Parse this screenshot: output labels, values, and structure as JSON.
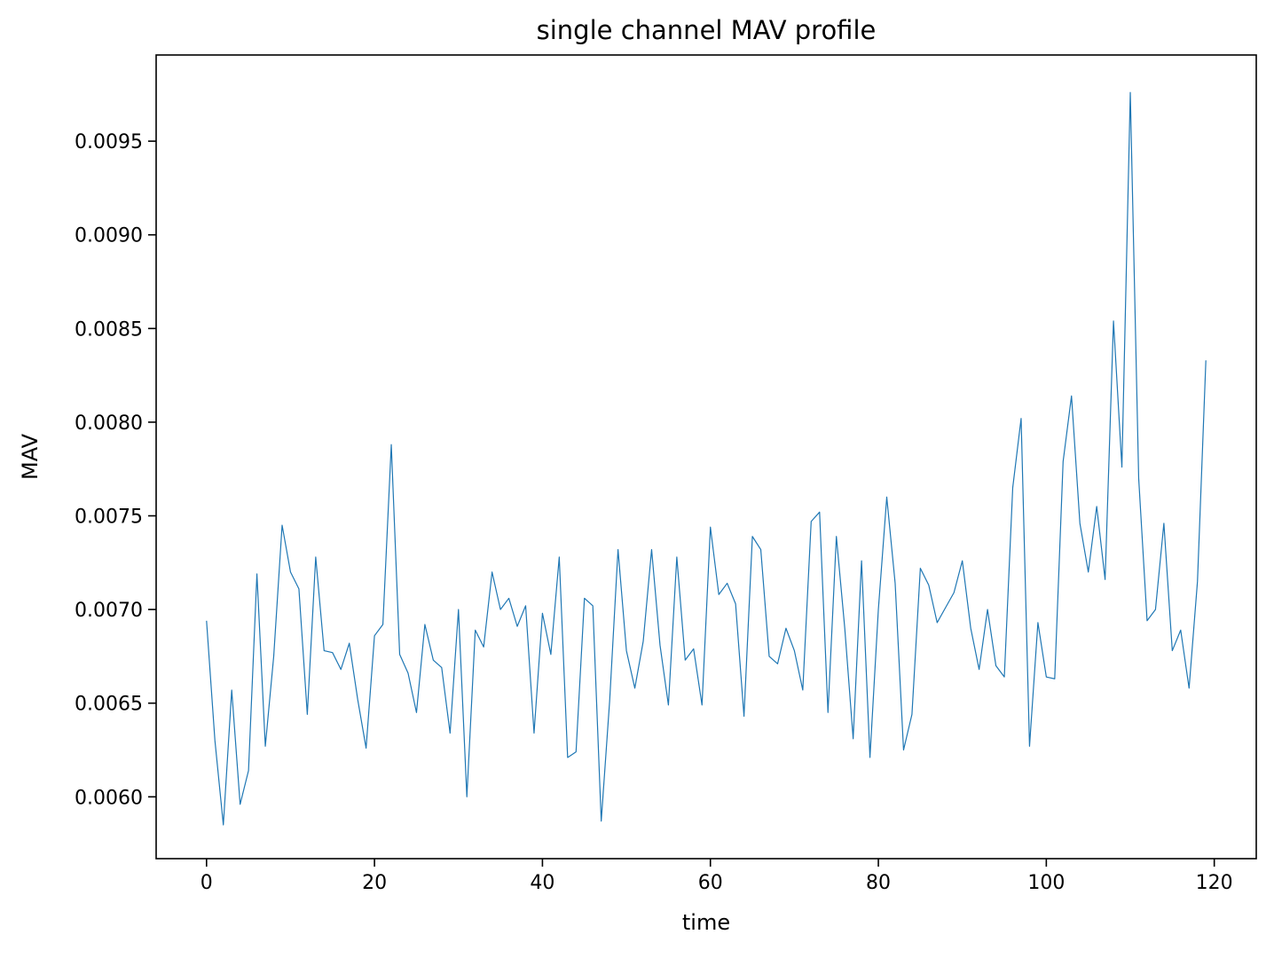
{
  "chart_data": {
    "type": "line",
    "title": "single channel MAV profile",
    "xlabel": "time",
    "ylabel": "MAV",
    "xlim": [
      -6,
      125
    ],
    "ylim": [
      0.00567,
      0.00996
    ],
    "xticks": [
      0,
      20,
      40,
      60,
      80,
      100,
      120
    ],
    "xtick_labels": [
      "0",
      "20",
      "40",
      "60",
      "80",
      "100",
      "120"
    ],
    "yticks": [
      0.006,
      0.0065,
      0.007,
      0.0075,
      0.008,
      0.0085,
      0.009,
      0.0095
    ],
    "ytick_labels": [
      "0.0060",
      "0.0065",
      "0.0070",
      "0.0075",
      "0.0080",
      "0.0085",
      "0.0090",
      "0.0095"
    ],
    "grid": false,
    "legend": "none",
    "colors": {
      "line": "#1f77b4",
      "axes": "#000000",
      "background": "#ffffff"
    },
    "series": [
      {
        "x": [
          0,
          1,
          2,
          3,
          4,
          5,
          6,
          7,
          8,
          9,
          10,
          11,
          12,
          13,
          14,
          15,
          16,
          17,
          18,
          19,
          20,
          21,
          22,
          23,
          24,
          25,
          26,
          27,
          28,
          29,
          30,
          31,
          32,
          33,
          34,
          35,
          36,
          37,
          38,
          39,
          40,
          41,
          42,
          43,
          44,
          45,
          46,
          47,
          48,
          49,
          50,
          51,
          52,
          53,
          54,
          55,
          56,
          57,
          58,
          59,
          60,
          61,
          62,
          63,
          64,
          65,
          66,
          67,
          68,
          69,
          70,
          71,
          72,
          73,
          74,
          75,
          76,
          77,
          78,
          79,
          80,
          81,
          82,
          83,
          84,
          85,
          86,
          87,
          88,
          89,
          90,
          91,
          92,
          93,
          94,
          95,
          96,
          97,
          98,
          99,
          100,
          101,
          102,
          103,
          104,
          105,
          106,
          107,
          108,
          109,
          110,
          111,
          112,
          113,
          114,
          115,
          116,
          117,
          118,
          119
        ],
        "values": [
          0.00694,
          0.0063,
          0.00585,
          0.00657,
          0.00596,
          0.00614,
          0.00719,
          0.00627,
          0.00675,
          0.00745,
          0.0072,
          0.00711,
          0.00644,
          0.00728,
          0.00678,
          0.00677,
          0.00668,
          0.00682,
          0.00652,
          0.00626,
          0.00686,
          0.00692,
          0.00788,
          0.00676,
          0.00666,
          0.00645,
          0.00692,
          0.00673,
          0.00669,
          0.00634,
          0.007,
          0.006,
          0.00689,
          0.0068,
          0.0072,
          0.007,
          0.00706,
          0.00691,
          0.00702,
          0.00634,
          0.00698,
          0.00676,
          0.00728,
          0.00621,
          0.00624,
          0.00706,
          0.00702,
          0.00587,
          0.00651,
          0.00732,
          0.00678,
          0.00658,
          0.00683,
          0.00732,
          0.00681,
          0.00649,
          0.00728,
          0.00673,
          0.00679,
          0.00649,
          0.00744,
          0.00708,
          0.00714,
          0.00703,
          0.00643,
          0.00739,
          0.00732,
          0.00675,
          0.00671,
          0.0069,
          0.00678,
          0.00657,
          0.00747,
          0.00752,
          0.00645,
          0.00739,
          0.0069,
          0.00631,
          0.00726,
          0.00621,
          0.007,
          0.0076,
          0.00714,
          0.00625,
          0.00644,
          0.00722,
          0.00713,
          0.00693,
          0.00701,
          0.00709,
          0.00726,
          0.0069,
          0.00668,
          0.007,
          0.0067,
          0.00664,
          0.00765,
          0.00802,
          0.00627,
          0.00693,
          0.00664,
          0.00663,
          0.00779,
          0.00814,
          0.00746,
          0.0072,
          0.00755,
          0.00716,
          0.00854,
          0.00776,
          0.00976,
          0.0077,
          0.00694,
          0.007,
          0.00746,
          0.00678,
          0.00689,
          0.00658,
          0.00715,
          0.00833
        ]
      }
    ]
  }
}
